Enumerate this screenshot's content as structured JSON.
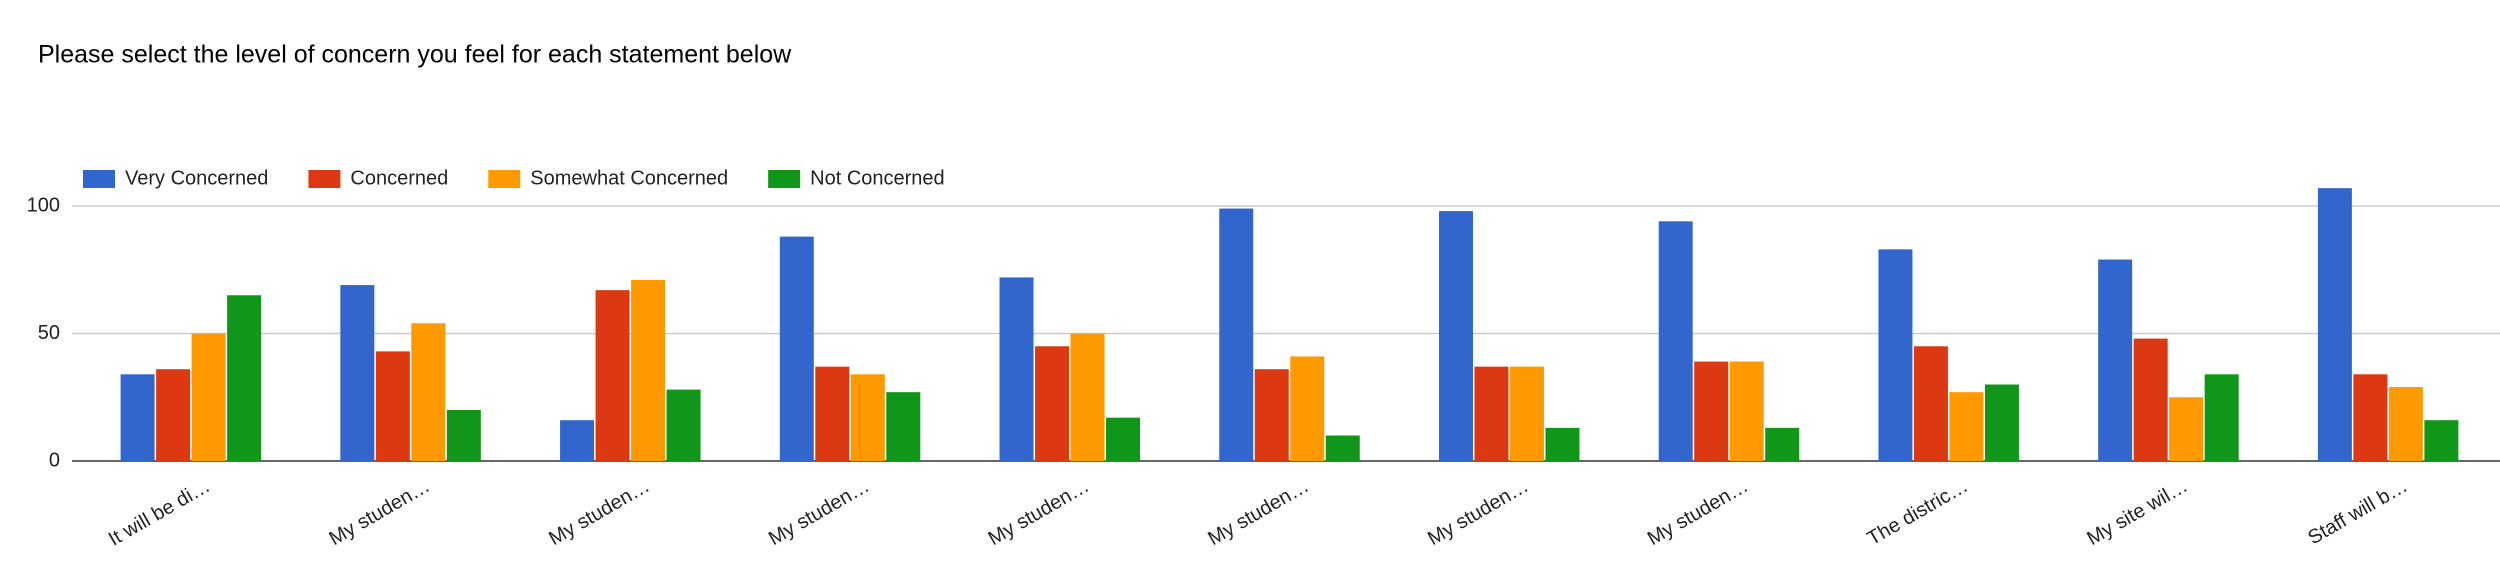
{
  "chart_data": {
    "type": "bar",
    "title": "Please select the level of concern you feel for each statement below",
    "categories": [
      "It will be di…",
      "My studen…",
      "My studen…",
      "My studen…",
      "My studen…",
      "My studen…",
      "My studen…",
      "My studen…",
      "The distric…",
      "My site wil…",
      "Staff will b…"
    ],
    "series": [
      {
        "name": "Very Concerned",
        "color": "#3366cc",
        "values": [
          34,
          69,
          16,
          88,
          72,
          99,
          98,
          94,
          83,
          79,
          107
        ]
      },
      {
        "name": "Concerned",
        "color": "#dc3912",
        "values": [
          36,
          43,
          67,
          37,
          45,
          36,
          37,
          39,
          45,
          48,
          34
        ]
      },
      {
        "name": "Somewhat Concerned",
        "color": "#ff9900",
        "values": [
          50,
          54,
          71,
          34,
          50,
          41,
          37,
          39,
          27,
          25,
          29
        ]
      },
      {
        "name": "Not Concerned",
        "color": "#109618",
        "values": [
          65,
          20,
          28,
          27,
          17,
          10,
          13,
          13,
          30,
          34,
          16
        ]
      }
    ],
    "ylim": [
      0,
      110
    ],
    "yticks": [
      0,
      50,
      100
    ],
    "grid": true,
    "legend": "top"
  }
}
